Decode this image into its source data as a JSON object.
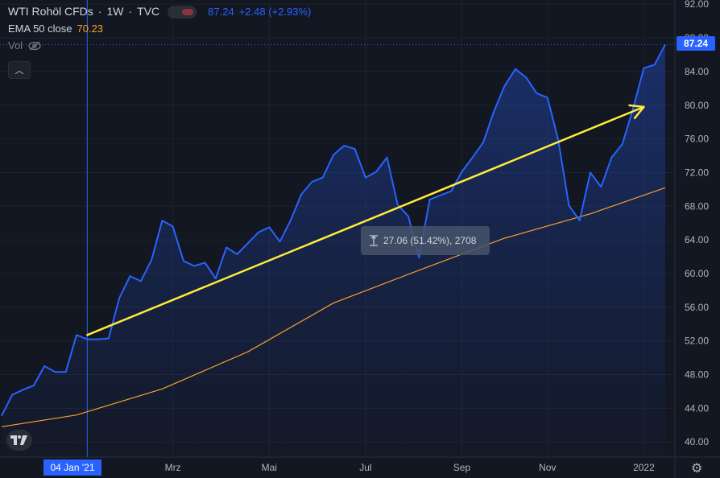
{
  "legend": {
    "symbol": "WTI Rohöl CFDs",
    "interval": "1W",
    "source": "TVC",
    "price": "87.24",
    "change": "+2.48 (+2.93%)",
    "ema_label": "EMA 50 close",
    "ema_value": "70.23",
    "vol_label": "Vol"
  },
  "price_badge": "87.24",
  "time_badge": "04 Jan '21",
  "measure_label": "27.06 (51.42%), 2708",
  "colors": {
    "price_line": "#2962ff",
    "ema_line": "#f7a128",
    "arrow": "#ffeb3b",
    "background": "#131722"
  },
  "chart_data": {
    "type": "line",
    "y_ticks": [
      "40.00",
      "44.00",
      "48.00",
      "52.00",
      "56.00",
      "60.00",
      "64.00",
      "68.00",
      "72.00",
      "76.00",
      "80.00",
      "84.00",
      "88.00",
      "92.00"
    ],
    "x_ticks": [
      "Mrz",
      "Mai",
      "Jul",
      "Sep",
      "Nov",
      "2022"
    ],
    "ylim": [
      38.2,
      92.5
    ],
    "series": [
      {
        "name": "WTI Rohöl CFDs",
        "x": [
          "2020-11-09",
          "2020-11-16",
          "2020-11-23",
          "2020-11-30",
          "2020-12-07",
          "2020-12-14",
          "2020-12-21",
          "2020-12-28",
          "2021-01-04",
          "2021-01-11",
          "2021-01-18",
          "2021-01-25",
          "2021-02-01",
          "2021-02-08",
          "2021-02-15",
          "2021-02-22",
          "2021-03-01",
          "2021-03-08",
          "2021-03-15",
          "2021-03-22",
          "2021-03-29",
          "2021-04-05",
          "2021-04-12",
          "2021-04-19",
          "2021-04-26",
          "2021-05-03",
          "2021-05-10",
          "2021-05-17",
          "2021-05-24",
          "2021-05-31",
          "2021-06-07",
          "2021-06-14",
          "2021-06-21",
          "2021-06-28",
          "2021-07-05",
          "2021-07-12",
          "2021-07-19",
          "2021-07-26",
          "2021-08-02",
          "2021-08-09",
          "2021-08-16",
          "2021-08-23",
          "2021-08-30",
          "2021-09-06",
          "2021-09-13",
          "2021-09-20",
          "2021-09-27",
          "2021-10-04",
          "2021-10-11",
          "2021-10-18",
          "2021-10-25",
          "2021-11-01",
          "2021-11-08",
          "2021-11-15",
          "2021-11-22",
          "2021-11-29",
          "2021-12-06",
          "2021-12-13",
          "2021-12-20",
          "2021-12-27",
          "2022-01-03",
          "2022-01-10",
          "2022-01-17"
        ],
        "values": [
          43.1,
          45.6,
          46.2,
          46.7,
          49.0,
          48.3,
          48.3,
          52.7,
          52.2,
          52.2,
          52.3,
          57.1,
          59.7,
          59.1,
          61.6,
          66.3,
          65.6,
          61.5,
          60.9,
          61.3,
          59.4,
          63.1,
          62.3,
          63.6,
          64.9,
          65.5,
          63.8,
          66.3,
          69.4,
          70.9,
          71.4,
          74.1,
          75.2,
          74.8,
          71.4,
          72.1,
          73.8,
          68.2,
          66.8,
          61.9,
          68.8,
          69.3,
          69.8,
          72.1,
          73.8,
          75.6,
          79.3,
          82.3,
          84.3,
          83.3,
          81.4,
          80.9,
          75.9,
          68.1,
          66.3,
          72.0,
          70.3,
          73.8,
          75.4,
          79.6,
          84.4,
          84.8,
          87.2
        ]
      },
      {
        "name": "EMA 50 close",
        "x": [
          "2020-11-09",
          "2020-12-28",
          "2021-02-22",
          "2021-04-19",
          "2021-06-14",
          "2021-08-09",
          "2021-10-04",
          "2021-11-29",
          "2022-01-17"
        ],
        "values": [
          41.8,
          43.2,
          46.3,
          50.7,
          56.5,
          60.4,
          64.2,
          67.1,
          70.2
        ]
      }
    ],
    "annotation": {
      "type": "arrow",
      "from": {
        "x": "2021-01-04",
        "y": 52.7
      },
      "to": {
        "x": "2022-01-03",
        "y": 79.8
      }
    }
  }
}
